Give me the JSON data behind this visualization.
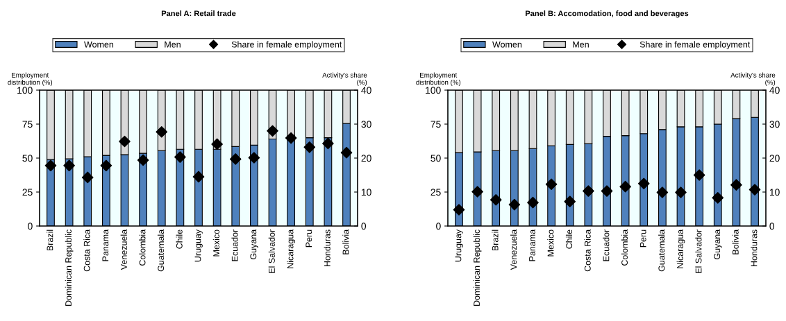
{
  "chart_data": [
    {
      "type": "bar",
      "title": "Panel A: Retail trade",
      "ylabel": "Employment\ndistribution (%)",
      "y2label": "Activity's share\n(%)",
      "stacked": true,
      "legend": "top",
      "marker": "diamond",
      "grid": false,
      "categories": [
        "Brazil",
        "Dominican Republic",
        "Costa Rica",
        "Panama",
        "Venezuela",
        "Colombia",
        "Guatemala",
        "Chile",
        "Uruguay",
        "Mexico",
        "Ecuador",
        "Guyana",
        "El Salvador",
        "Nicaragua",
        "Peru",
        "Honduras",
        "Bolivia"
      ],
      "series": [
        {
          "name": "Women",
          "color": "#4f81bd",
          "values": [
            49,
            49.5,
            51,
            52,
            52.5,
            53.5,
            55.5,
            56.5,
            56.5,
            56.5,
            58.5,
            59.5,
            64,
            65,
            65,
            65,
            75.5
          ]
        },
        {
          "name": "Men",
          "color": "#d9d9d9",
          "values": [
            51,
            50.5,
            49,
            48,
            47.5,
            46.5,
            44.5,
            43.5,
            43.5,
            43.5,
            41.5,
            40.5,
            36,
            35,
            35,
            35,
            24.5
          ]
        },
        {
          "name": "Share in female employment",
          "type": "scatter",
          "axis": "y2",
          "color": "#000000",
          "values": [
            17.8,
            17.8,
            14.3,
            17.8,
            24.9,
            19.4,
            27.7,
            20.3,
            14.5,
            24.1,
            19.7,
            20.1,
            28.0,
            25.9,
            23.2,
            24.3,
            21.6
          ]
        }
      ],
      "ylim": [
        0,
        100
      ],
      "yticks": [
        0,
        25,
        50,
        75,
        100
      ],
      "y2lim": [
        0,
        40
      ],
      "y2ticks": [
        0,
        10,
        20,
        30,
        40
      ]
    },
    {
      "type": "bar",
      "title": "Panel B: Accomodation, food and beverages",
      "ylabel": "Employment\ndistribution (%)",
      "y2label": "Activity's share\n(%)",
      "stacked": true,
      "legend": "top",
      "marker": "diamond",
      "grid": false,
      "categories": [
        "Uruguay",
        "Dominican Republic",
        "Brazil",
        "Venezuela",
        "Panama",
        "Mexico",
        "Chile",
        "Costa Rica",
        "Ecuador",
        "Colombia",
        "Peru",
        "Guatemala",
        "Nicaragua",
        "El Salvador",
        "Guyana",
        "Bolivia",
        "Honduras"
      ],
      "series": [
        {
          "name": "Women",
          "color": "#4f81bd",
          "values": [
            54,
            54.5,
            55.5,
            55.5,
            57,
            59,
            60,
            60.5,
            66,
            66.5,
            68,
            71,
            73,
            73,
            75,
            79,
            80
          ]
        },
        {
          "name": "Men",
          "color": "#d9d9d9",
          "values": [
            46,
            45.5,
            44.5,
            44.5,
            43,
            41,
            40,
            39.5,
            34,
            33.5,
            32,
            29,
            27,
            27,
            25,
            21,
            20
          ]
        },
        {
          "name": "Share in female employment",
          "type": "scatter",
          "axis": "y2",
          "color": "#000000",
          "values": [
            4.8,
            10.1,
            7.7,
            6.3,
            6.9,
            12.3,
            7.2,
            10.3,
            10.3,
            11.6,
            12.5,
            9.9,
            9.9,
            15.0,
            8.3,
            12.1,
            10.7
          ]
        }
      ],
      "ylim": [
        0,
        100
      ],
      "yticks": [
        0,
        25,
        50,
        75,
        100
      ],
      "y2lim": [
        0,
        40
      ],
      "y2ticks": [
        0,
        10,
        20,
        30,
        40
      ]
    }
  ]
}
